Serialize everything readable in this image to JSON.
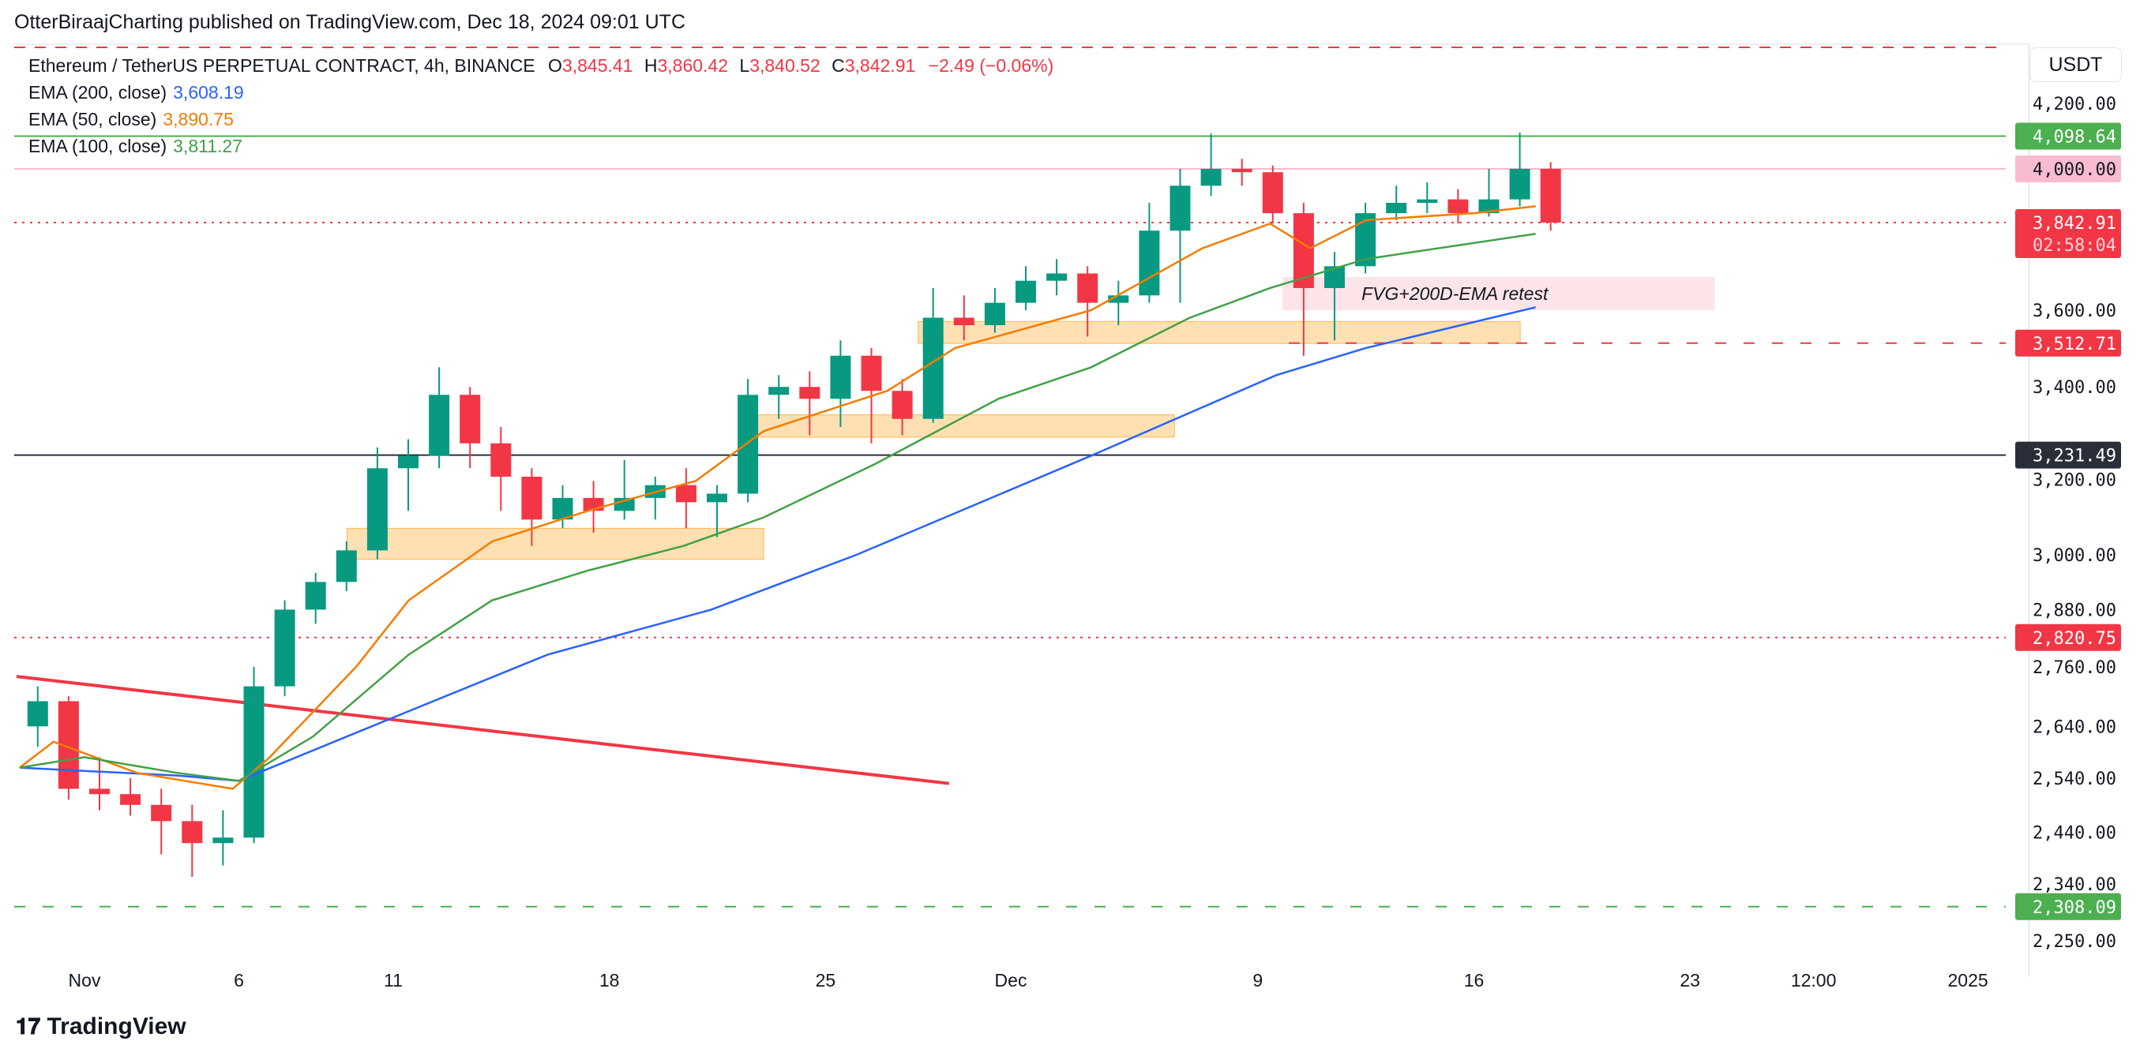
{
  "publish_line": "OtterBiraajCharting published on TradingView.com, Dec 18, 2024 09:01 UTC",
  "symbol": {
    "title": "Ethereum / TetherUS PERPETUAL CONTRACT, 4h, BINANCE",
    "o_label": "O",
    "o": "3,845.41",
    "h_label": "H",
    "h": "3,860.42",
    "l_label": "L",
    "l": "3,840.52",
    "c_label": "C",
    "c": "3,842.91",
    "change": "−2.49 (−0.06%)"
  },
  "indicators": [
    {
      "label": "EMA (200, close)",
      "value": "3,608.19",
      "color": "#2962ff"
    },
    {
      "label": "EMA (50, close)",
      "value": "3,890.75",
      "color": "#f57c00"
    },
    {
      "label": "EMA (100, close)",
      "value": "3,811.27",
      "color": "#43a047"
    }
  ],
  "currency": "USDT",
  "logo": "TradingView",
  "colors": {
    "up": "#089981",
    "down": "#f23645"
  },
  "chart_data": {
    "type": "candlestick",
    "y_scale": "log",
    "ylim": [
      2250,
      4200
    ],
    "y_ticks": [
      4200,
      3600,
      3400,
      3200,
      3000,
      2880,
      2760,
      2640,
      2540,
      2440,
      2340,
      2250
    ],
    "y_tick_labels": [
      "4,200.00",
      "3,600.00",
      "3,400.00",
      "3,200.00",
      "3,000.00",
      "2,880.00",
      "2,760.00",
      "2,640.00",
      "2,540.00",
      "2,440.00",
      "2,340.00",
      "2,250.00"
    ],
    "x_ticks": [
      {
        "date": "2024-11-01",
        "label": "Nov"
      },
      {
        "date": "2024-11-06",
        "label": "6"
      },
      {
        "date": "2024-11-11",
        "label": "11"
      },
      {
        "date": "2024-11-18",
        "label": "18"
      },
      {
        "date": "2024-11-25",
        "label": "25"
      },
      {
        "date": "2024-12-01",
        "label": "Dec"
      },
      {
        "date": "2024-12-09",
        "label": "9"
      },
      {
        "date": "2024-12-16",
        "label": "16"
      },
      {
        "date": "2024-12-23",
        "label": "23"
      },
      {
        "date": "2024-12-27",
        "label": "12:00"
      },
      {
        "date": "2025-01-01",
        "label": "2025"
      }
    ],
    "candles": [
      [
        "2024-10-30",
        2640,
        2720,
        2600,
        2690
      ],
      [
        "2024-10-31",
        2690,
        2700,
        2500,
        2520
      ],
      [
        "2024-11-01",
        2520,
        2580,
        2480,
        2510
      ],
      [
        "2024-11-02",
        2510,
        2540,
        2470,
        2490
      ],
      [
        "2024-11-03",
        2490,
        2520,
        2400,
        2460
      ],
      [
        "2024-11-04",
        2460,
        2490,
        2360,
        2420
      ],
      [
        "2024-11-05",
        2420,
        2480,
        2380,
        2430
      ],
      [
        "2024-11-06",
        2430,
        2760,
        2420,
        2720
      ],
      [
        "2024-11-07",
        2720,
        2900,
        2700,
        2880
      ],
      [
        "2024-11-08",
        2880,
        2960,
        2850,
        2940
      ],
      [
        "2024-11-09",
        2940,
        3030,
        2920,
        3010
      ],
      [
        "2024-11-10",
        3010,
        3250,
        2990,
        3200
      ],
      [
        "2024-11-11",
        3200,
        3270,
        3100,
        3230
      ],
      [
        "2024-11-12",
        3230,
        3450,
        3200,
        3380
      ],
      [
        "2024-11-13",
        3380,
        3400,
        3200,
        3260
      ],
      [
        "2024-11-14",
        3260,
        3300,
        3100,
        3180
      ],
      [
        "2024-11-15",
        3180,
        3200,
        3020,
        3080
      ],
      [
        "2024-11-16",
        3080,
        3160,
        3060,
        3130
      ],
      [
        "2024-11-17",
        3130,
        3170,
        3050,
        3100
      ],
      [
        "2024-11-18",
        3100,
        3220,
        3080,
        3130
      ],
      [
        "2024-11-19",
        3130,
        3180,
        3080,
        3160
      ],
      [
        "2024-11-20",
        3160,
        3200,
        3060,
        3120
      ],
      [
        "2024-11-21",
        3120,
        3160,
        3040,
        3140
      ],
      [
        "2024-11-22",
        3140,
        3420,
        3120,
        3380
      ],
      [
        "2024-11-23",
        3380,
        3430,
        3320,
        3400
      ],
      [
        "2024-11-24",
        3400,
        3440,
        3280,
        3370
      ],
      [
        "2024-11-25",
        3370,
        3520,
        3300,
        3480
      ],
      [
        "2024-11-26",
        3480,
        3500,
        3260,
        3390
      ],
      [
        "2024-11-27",
        3390,
        3420,
        3280,
        3320
      ],
      [
        "2024-11-28",
        3320,
        3660,
        3310,
        3580
      ],
      [
        "2024-11-29",
        3580,
        3640,
        3520,
        3560
      ],
      [
        "2024-11-30",
        3560,
        3660,
        3540,
        3620
      ],
      [
        "2024-12-01",
        3620,
        3720,
        3600,
        3680
      ],
      [
        "2024-12-02",
        3680,
        3740,
        3640,
        3700
      ],
      [
        "2024-12-03",
        3700,
        3720,
        3530,
        3620
      ],
      [
        "2024-12-04",
        3620,
        3680,
        3560,
        3640
      ],
      [
        "2024-12-05",
        3640,
        3900,
        3620,
        3820
      ],
      [
        "2024-12-06",
        3820,
        4000,
        3620,
        3950
      ],
      [
        "2024-12-07",
        3950,
        4107,
        3920,
        4000
      ],
      [
        "2024-12-08",
        4000,
        4030,
        3950,
        3990
      ],
      [
        "2024-12-09",
        3990,
        4010,
        3840,
        3870
      ],
      [
        "2024-12-10",
        3870,
        3900,
        3480,
        3660
      ],
      [
        "2024-12-11",
        3660,
        3760,
        3520,
        3720
      ],
      [
        "2024-12-12",
        3720,
        3900,
        3700,
        3870
      ],
      [
        "2024-12-13",
        3870,
        3950,
        3850,
        3900
      ],
      [
        "2024-12-14",
        3900,
        3960,
        3870,
        3910
      ],
      [
        "2024-12-15",
        3910,
        3940,
        3840,
        3870
      ],
      [
        "2024-12-16",
        3870,
        4000,
        3860,
        3910
      ],
      [
        "2024-12-17",
        3910,
        4110,
        3890,
        4000
      ],
      [
        "2024-12-18",
        4000,
        4020,
        3820,
        3843
      ]
    ],
    "series": [
      {
        "name": "EMA (200, close)",
        "color": "#2962ff",
        "points": [
          [
            "2024-10-29.9",
            2560
          ],
          [
            "2024-11-04",
            2545
          ],
          [
            "2024-11-06",
            2535
          ],
          [
            "2024-11-11.5",
            2670
          ],
          [
            "2024-11-16",
            2785
          ],
          [
            "2024-11-21.3",
            2880
          ],
          [
            "2024-11-26",
            3000
          ],
          [
            "2024-12-03.6",
            3230
          ],
          [
            "2024-12-09.6",
            3430
          ],
          [
            "2024-12-12.5",
            3500
          ],
          [
            "2024-12-18",
            3608
          ]
        ]
      },
      {
        "name": "EMA (50, close)",
        "color": "#f57c00",
        "points": [
          [
            "2024-10-29.9",
            2560
          ],
          [
            "2024-10-31",
            2610
          ],
          [
            "2024-11-02.7",
            2550
          ],
          [
            "2024-11-05.8",
            2520
          ],
          [
            "2024-11-07",
            2580
          ],
          [
            "2024-11-09.8",
            2760
          ],
          [
            "2024-11-11.5",
            2900
          ],
          [
            "2024-11-14.2",
            3030
          ],
          [
            "2024-11-17.3",
            3100
          ],
          [
            "2024-11-20.8",
            3170
          ],
          [
            "2024-11-23",
            3290
          ],
          [
            "2024-11-27",
            3390
          ],
          [
            "2024-11-29.2",
            3500
          ],
          [
            "2024-12-03.6",
            3600
          ],
          [
            "2024-12-07.2",
            3770
          ],
          [
            "2024-12-09.4",
            3840
          ],
          [
            "2024-12-10.7",
            3770
          ],
          [
            "2024-12-12.5",
            3850
          ],
          [
            "2024-12-16",
            3870
          ],
          [
            "2024-12-18",
            3890
          ]
        ]
      },
      {
        "name": "EMA (100, close)",
        "color": "#43a047",
        "points": [
          [
            "2024-10-29.9",
            2560
          ],
          [
            "2024-11-01",
            2580
          ],
          [
            "2024-11-04",
            2550
          ],
          [
            "2024-11-06",
            2535
          ],
          [
            "2024-11-08.4",
            2620
          ],
          [
            "2024-11-11.5",
            2785
          ],
          [
            "2024-11-14.2",
            2900
          ],
          [
            "2024-11-17.3",
            2965
          ],
          [
            "2024-11-20.4",
            3020
          ],
          [
            "2024-11-23",
            3085
          ],
          [
            "2024-11-26.6",
            3210
          ],
          [
            "2024-11-30.6",
            3370
          ],
          [
            "2024-12-03.6",
            3450
          ],
          [
            "2024-12-06.8",
            3580
          ],
          [
            "2024-12-09.4",
            3660
          ],
          [
            "2024-12-12.5",
            3740
          ],
          [
            "2024-12-18",
            3811
          ]
        ]
      }
    ],
    "horizontal_levels": [
      {
        "price": 4098.64,
        "label": "4,098.64",
        "color": "#4caf50",
        "style": "solid",
        "text_color": "#ffffff"
      },
      {
        "price": 4000,
        "label": "4,000.00",
        "color": "#f8bbd0",
        "style": "solid",
        "text_color": "#131722"
      },
      {
        "price": 3842.91,
        "label": "3,842.91",
        "sublabel": "02:58:04",
        "color": "#f23645",
        "style": "dotted",
        "text_color": "#ffffff"
      },
      {
        "price": 3512.71,
        "label": "3,512.71",
        "color": "#f23645",
        "style": "dashed",
        "from": "2024-12-10",
        "text_color": "#ffffff"
      },
      {
        "price": 3231.49,
        "label": "3,231.49",
        "color": "#2a2e39",
        "style": "solid",
        "text_color": "#ffffff"
      },
      {
        "price": 2820.75,
        "label": "2,820.75",
        "color": "#f23645",
        "style": "dotted",
        "text_color": "#ffffff"
      },
      {
        "price": 2308.09,
        "label": "2,308.09",
        "color": "#4caf50",
        "style": "dashed",
        "text_color": "#ffffff"
      }
    ],
    "trendline": {
      "color": "#f23645",
      "from": [
        "2024-10-29.8",
        2740
      ],
      "to": [
        "2024-11-29",
        2530
      ]
    },
    "zones": [
      {
        "from": "2024-11-09.5",
        "to": "2024-11-23",
        "top": 3060,
        "bottom": 2990,
        "color": "#ffe0b2"
      },
      {
        "from": "2024-11-22.4",
        "to": "2024-12-06.3",
        "top": 3330,
        "bottom": 3275,
        "color": "#ffe0b2"
      },
      {
        "from": "2024-11-28",
        "to": "2024-12-17.5",
        "top": 3570,
        "bottom": 3512,
        "color": "#ffe0b2"
      },
      {
        "from": "2024-12-09.8",
        "to": "2024-12-23.8",
        "top": 3690,
        "bottom": 3600,
        "color": "#fde4e8",
        "label": "FVG+200D-EMA retest"
      }
    ]
  }
}
